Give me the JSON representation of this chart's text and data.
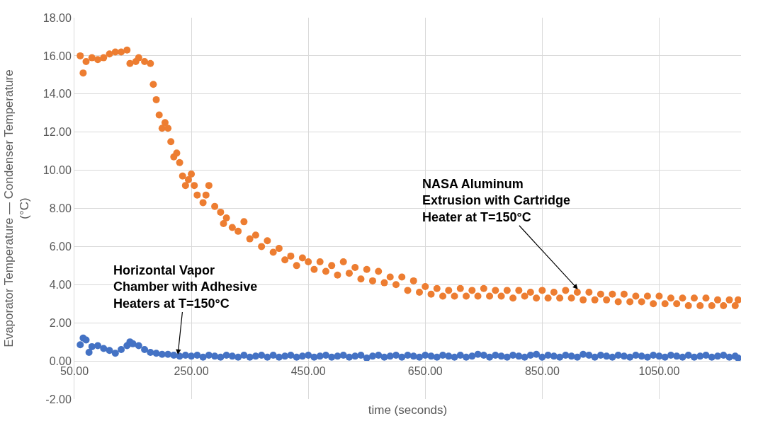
{
  "chart_data": {
    "type": "scatter",
    "xlabel": "time (seconds)",
    "ylabel": "Evaporator Temperature — Condenser Temperature\n(°C)",
    "xlim": [
      50,
      1190
    ],
    "ylim": [
      -2,
      18
    ],
    "xticks": [
      {
        "value": 50,
        "label": "50.00"
      },
      {
        "value": 250,
        "label": "250.00"
      },
      {
        "value": 450,
        "label": "450.00"
      },
      {
        "value": 650,
        "label": "650.00"
      },
      {
        "value": 850,
        "label": "850.00"
      },
      {
        "value": 1050,
        "label": "1050.00"
      }
    ],
    "yticks": [
      {
        "value": -2,
        "label": "-2.00"
      },
      {
        "value": 0,
        "label": "0.00"
      },
      {
        "value": 2,
        "label": "2.00"
      },
      {
        "value": 4,
        "label": "4.00"
      },
      {
        "value": 6,
        "label": "6.00"
      },
      {
        "value": 8,
        "label": "8.00"
      },
      {
        "value": 10,
        "label": "10.00"
      },
      {
        "value": 12,
        "label": "12.00"
      },
      {
        "value": 14,
        "label": "14.00"
      },
      {
        "value": 16,
        "label": "16.00"
      },
      {
        "value": 18,
        "label": "18.00"
      }
    ],
    "grid": true,
    "marker": "circle",
    "series": [
      {
        "color": "#ed7d31",
        "x": [
          60,
          65,
          70,
          80,
          90,
          100,
          110,
          120,
          130,
          140,
          145,
          155,
          160,
          170,
          180,
          185,
          190,
          195,
          200,
          205,
          210,
          215,
          220,
          225,
          230,
          235,
          240,
          245,
          250,
          255,
          260,
          270,
          275,
          280,
          290,
          300,
          305,
          310,
          320,
          330,
          340,
          350,
          360,
          370,
          380,
          390,
          400,
          410,
          420,
          430,
          440,
          450,
          460,
          470,
          480,
          490,
          500,
          510,
          520,
          530,
          540,
          550,
          560,
          570,
          580,
          590,
          600,
          610,
          620,
          630,
          640,
          650,
          660,
          670,
          680,
          690,
          700,
          710,
          720,
          730,
          740,
          750,
          760,
          770,
          780,
          790,
          800,
          810,
          820,
          830,
          840,
          850,
          860,
          870,
          880,
          890,
          900,
          910,
          920,
          930,
          940,
          950,
          960,
          970,
          980,
          990,
          1000,
          1010,
          1020,
          1030,
          1040,
          1050,
          1060,
          1070,
          1080,
          1090,
          1100,
          1110,
          1120,
          1130,
          1140,
          1150,
          1160,
          1170,
          1180,
          1185
        ],
        "values": [
          16.0,
          15.1,
          15.7,
          15.9,
          15.8,
          15.9,
          16.1,
          16.2,
          16.2,
          16.3,
          15.6,
          15.7,
          15.9,
          15.7,
          15.6,
          14.5,
          13.7,
          12.9,
          12.2,
          12.5,
          12.2,
          11.5,
          10.7,
          10.9,
          10.4,
          9.7,
          9.2,
          9.5,
          9.8,
          9.2,
          8.7,
          8.3,
          8.7,
          9.2,
          8.1,
          7.8,
          7.2,
          7.5,
          7.0,
          6.8,
          7.3,
          6.4,
          6.6,
          6.0,
          6.3,
          5.7,
          5.9,
          5.3,
          5.5,
          5.0,
          5.4,
          5.2,
          4.8,
          5.2,
          4.7,
          5.0,
          4.5,
          5.2,
          4.6,
          4.9,
          4.3,
          4.8,
          4.2,
          4.7,
          4.1,
          4.4,
          4.0,
          4.4,
          3.7,
          4.2,
          3.6,
          3.9,
          3.5,
          3.8,
          3.4,
          3.7,
          3.4,
          3.8,
          3.4,
          3.7,
          3.4,
          3.8,
          3.4,
          3.7,
          3.4,
          3.7,
          3.3,
          3.7,
          3.4,
          3.6,
          3.3,
          3.7,
          3.3,
          3.6,
          3.3,
          3.7,
          3.3,
          3.6,
          3.2,
          3.6,
          3.2,
          3.5,
          3.2,
          3.5,
          3.1,
          3.5,
          3.1,
          3.4,
          3.1,
          3.4,
          3.0,
          3.4,
          3.0,
          3.3,
          3.0,
          3.3,
          2.9,
          3.3,
          2.9,
          3.3,
          2.9,
          3.2,
          2.9,
          3.2,
          2.9,
          3.2
        ]
      },
      {
        "color": "#4472c4",
        "x": [
          60,
          65,
          70,
          75,
          80,
          90,
          100,
          110,
          120,
          130,
          140,
          145,
          150,
          160,
          170,
          180,
          190,
          200,
          210,
          220,
          230,
          240,
          250,
          260,
          270,
          280,
          290,
          300,
          310,
          320,
          330,
          340,
          350,
          360,
          370,
          380,
          390,
          400,
          410,
          420,
          430,
          440,
          450,
          460,
          470,
          480,
          490,
          500,
          510,
          520,
          530,
          540,
          550,
          560,
          570,
          580,
          590,
          600,
          610,
          620,
          630,
          640,
          650,
          660,
          670,
          680,
          690,
          700,
          710,
          720,
          730,
          740,
          750,
          760,
          770,
          780,
          790,
          800,
          810,
          820,
          830,
          840,
          850,
          860,
          870,
          880,
          890,
          900,
          910,
          920,
          930,
          940,
          950,
          960,
          970,
          980,
          990,
          1000,
          1010,
          1020,
          1030,
          1040,
          1050,
          1060,
          1070,
          1080,
          1090,
          1100,
          1110,
          1120,
          1130,
          1140,
          1150,
          1160,
          1170,
          1180,
          1185
        ],
        "values": [
          0.85,
          1.2,
          1.1,
          0.45,
          0.75,
          0.8,
          0.65,
          0.55,
          0.4,
          0.6,
          0.8,
          1.0,
          0.9,
          0.8,
          0.6,
          0.45,
          0.4,
          0.35,
          0.35,
          0.3,
          0.25,
          0.3,
          0.25,
          0.3,
          0.2,
          0.3,
          0.25,
          0.2,
          0.3,
          0.25,
          0.2,
          0.3,
          0.2,
          0.25,
          0.3,
          0.2,
          0.3,
          0.2,
          0.25,
          0.3,
          0.2,
          0.25,
          0.3,
          0.2,
          0.25,
          0.3,
          0.2,
          0.25,
          0.3,
          0.2,
          0.25,
          0.3,
          0.15,
          0.25,
          0.3,
          0.2,
          0.25,
          0.3,
          0.2,
          0.3,
          0.25,
          0.2,
          0.3,
          0.25,
          0.2,
          0.3,
          0.25,
          0.2,
          0.3,
          0.2,
          0.25,
          0.35,
          0.3,
          0.2,
          0.3,
          0.25,
          0.2,
          0.3,
          0.25,
          0.2,
          0.3,
          0.35,
          0.2,
          0.3,
          0.25,
          0.2,
          0.3,
          0.25,
          0.2,
          0.35,
          0.3,
          0.2,
          0.3,
          0.25,
          0.2,
          0.3,
          0.25,
          0.2,
          0.3,
          0.25,
          0.2,
          0.3,
          0.25,
          0.2,
          0.3,
          0.25,
          0.2,
          0.3,
          0.2,
          0.25,
          0.3,
          0.2,
          0.25,
          0.3,
          0.2,
          0.25,
          0.15
        ]
      }
    ],
    "annotations": [
      {
        "text": "NASA Aluminum\nExtrusion with Cartridge\nHeater at T=150°C",
        "x": 911,
        "y": 3.76
      },
      {
        "text": "Horizontal Vapor\nChamber with Adhesive\nHeaters at T=150°C",
        "x": 227,
        "y": 0.34
      }
    ]
  }
}
